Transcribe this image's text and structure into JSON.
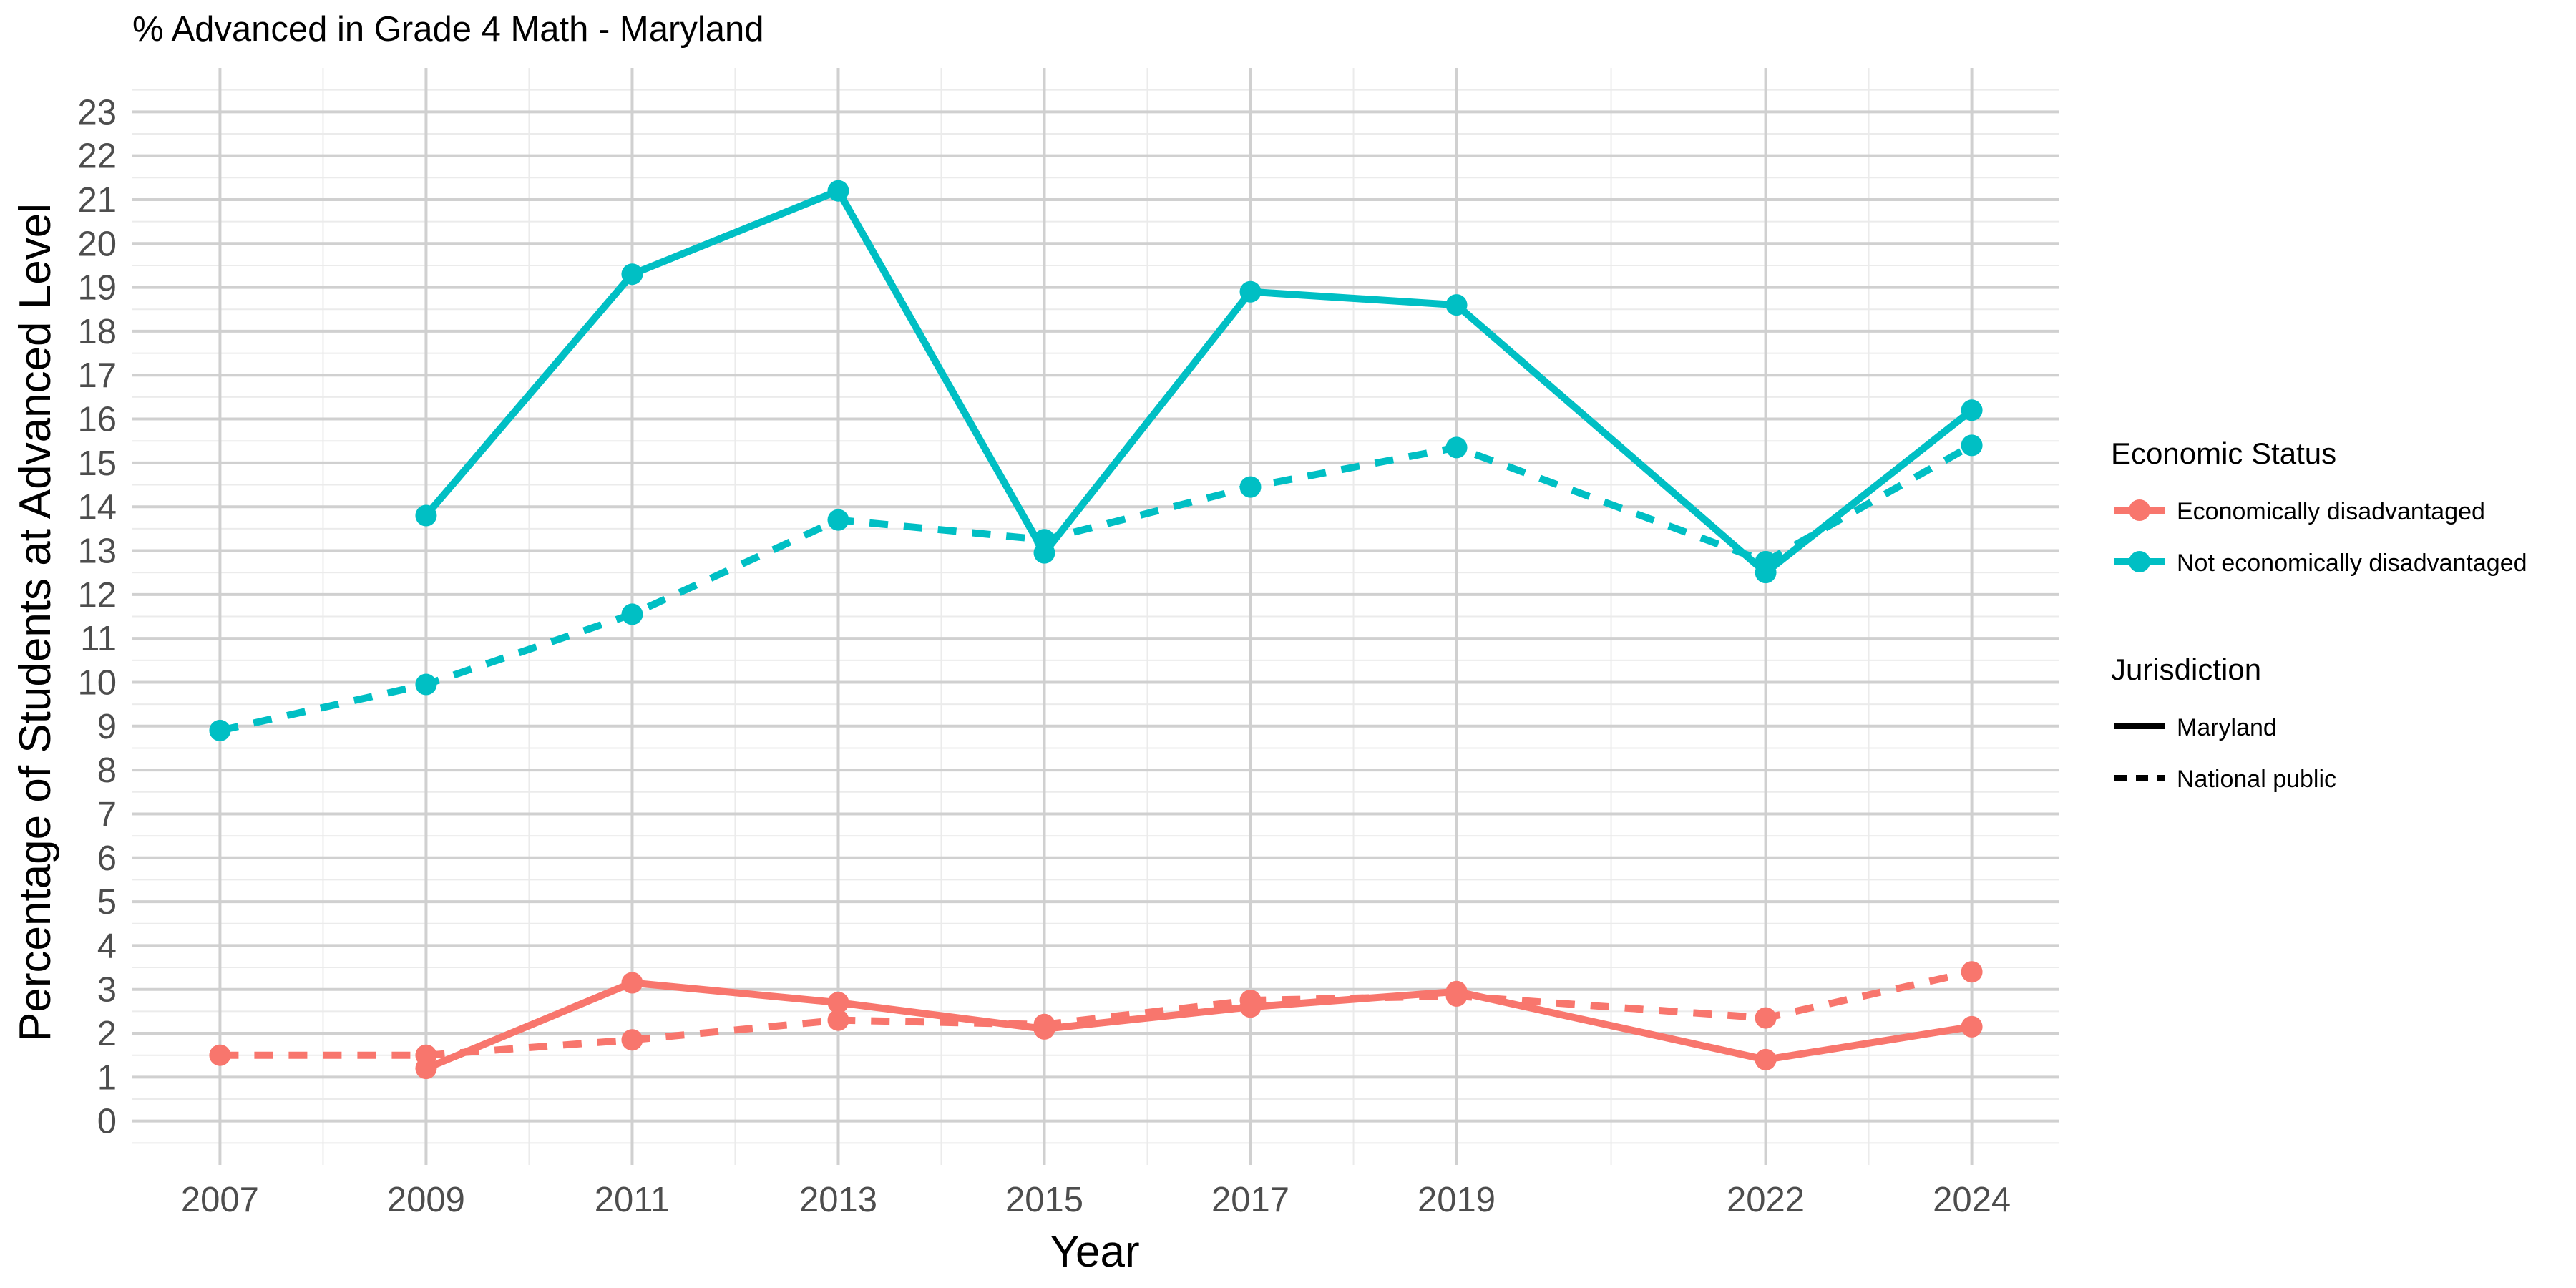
{
  "chart_data": {
    "type": "line",
    "title": "% Advanced in Grade 4 Math - Maryland",
    "xlabel": "Year",
    "ylabel": "Percentage of Students at Advanced Level",
    "x_ticks": [
      2007,
      2009,
      2011,
      2013,
      2015,
      2017,
      2019,
      2022,
      2024
    ],
    "xlim": [
      2006.15,
      2024.85
    ],
    "ylim": [
      -1.0,
      24.0
    ],
    "y_ticks": [
      0,
      1,
      2,
      3,
      4,
      5,
      6,
      7,
      8,
      9,
      10,
      11,
      12,
      13,
      14,
      15,
      16,
      17,
      18,
      19,
      20,
      21,
      22,
      23
    ],
    "grid": true,
    "legend_position": "right",
    "legend": {
      "color_title": "Economic Status",
      "color_entries": [
        {
          "label": "Economically disadvantaged",
          "color": "#F8766D"
        },
        {
          "label": "Not economically disadvantaged",
          "color": "#00BFC4"
        }
      ],
      "linetype_title": "Jurisdiction",
      "linetype_entries": [
        {
          "label": "Maryland",
          "dash": "solid"
        },
        {
          "label": "National public",
          "dash": "dashed"
        }
      ]
    },
    "series": [
      {
        "status": "Not economically disadvantaged",
        "jurisdiction": "Maryland",
        "color": "#00BFC4",
        "dash": "solid",
        "x": [
          2009,
          2011,
          2013,
          2015,
          2017,
          2019,
          2022,
          2024
        ],
        "y": [
          13.8,
          19.3,
          21.2,
          12.95,
          18.9,
          18.6,
          12.5,
          16.2
        ]
      },
      {
        "status": "Not economically disadvantaged",
        "jurisdiction": "National public",
        "color": "#00BFC4",
        "dash": "dashed",
        "x": [
          2007,
          2009,
          2011,
          2013,
          2015,
          2017,
          2019,
          2022,
          2024
        ],
        "y": [
          8.9,
          9.95,
          11.55,
          13.7,
          13.25,
          14.45,
          15.35,
          12.75,
          15.4
        ]
      },
      {
        "status": "Economically disadvantaged",
        "jurisdiction": "Maryland",
        "color": "#F8766D",
        "dash": "solid",
        "x": [
          2009,
          2011,
          2013,
          2015,
          2017,
          2019,
          2022,
          2024
        ],
        "y": [
          1.2,
          3.15,
          2.7,
          2.1,
          2.6,
          2.95,
          1.4,
          2.15
        ]
      },
      {
        "status": "Economically disadvantaged",
        "jurisdiction": "National public",
        "color": "#F8766D",
        "dash": "dashed",
        "x": [
          2007,
          2009,
          2011,
          2013,
          2015,
          2017,
          2019,
          2022,
          2024
        ],
        "y": [
          1.5,
          1.5,
          1.85,
          2.3,
          2.2,
          2.75,
          2.85,
          2.35,
          3.4
        ]
      }
    ]
  }
}
